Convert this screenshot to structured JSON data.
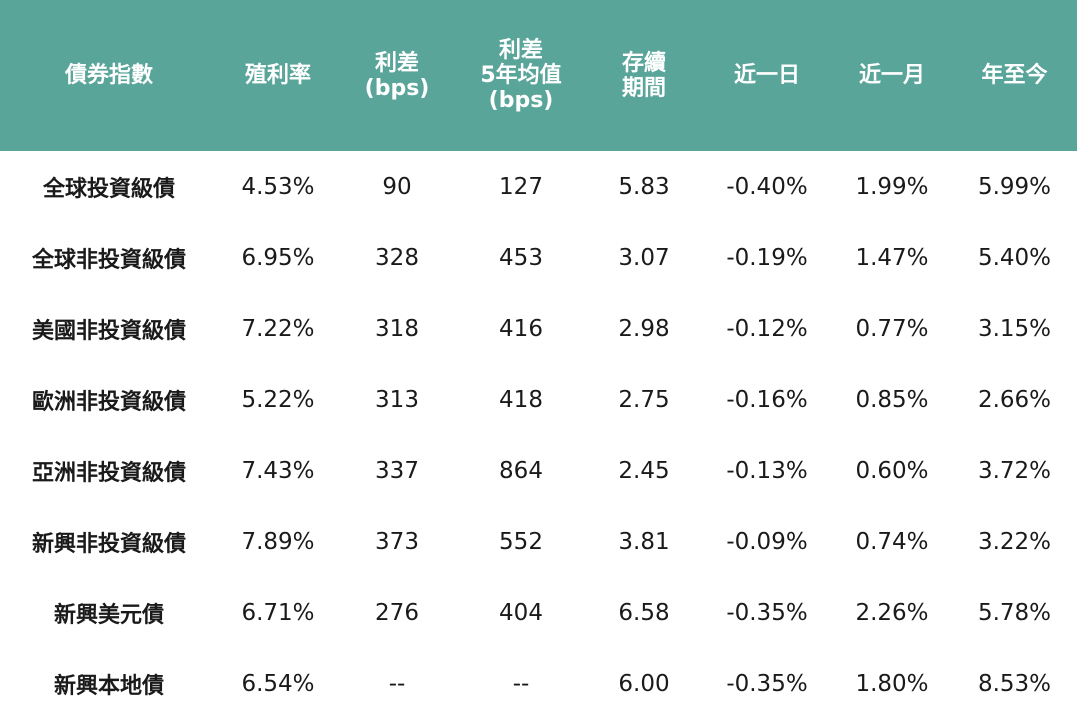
{
  "colors": {
    "header_bg": "#5aa59a",
    "header_text": "#ffffff",
    "negative": "#4a7a6e",
    "positive": "#b01c28"
  },
  "headers": [
    [
      "債券指數"
    ],
    [
      "殖利率"
    ],
    [
      "利差",
      "(bps)"
    ],
    [
      "利差",
      "5年均值",
      "(bps)"
    ],
    [
      "存續",
      "期間"
    ],
    [
      "近一日"
    ],
    [
      "近一月"
    ],
    [
      "年至今"
    ]
  ],
  "rows": [
    [
      "全球投資級債",
      "4.53%",
      "90",
      "127",
      "5.83",
      "-0.40%",
      "1.99%",
      "5.99%"
    ],
    [
      "全球非投資級債",
      "6.95%",
      "328",
      "453",
      "3.07",
      "-0.19%",
      "1.47%",
      "5.40%"
    ],
    [
      "美國非投資級債",
      "7.22%",
      "318",
      "416",
      "2.98",
      "-0.12%",
      "0.77%",
      "3.15%"
    ],
    [
      "歐洲非投資級債",
      "5.22%",
      "313",
      "418",
      "2.75",
      "-0.16%",
      "0.85%",
      "2.66%"
    ],
    [
      "亞洲非投資級債",
      "7.43%",
      "337",
      "864",
      "2.45",
      "-0.13%",
      "0.60%",
      "3.72%"
    ],
    [
      "新興非投資級債",
      "7.89%",
      "373",
      "552",
      "3.81",
      "-0.09%",
      "0.74%",
      "3.22%"
    ],
    [
      "新興美元債",
      "6.71%",
      "276",
      "404",
      "6.58",
      "-0.35%",
      "2.26%",
      "5.78%"
    ],
    [
      "新興本地債",
      "6.54%",
      "--",
      "--",
      "6.00",
      "-0.35%",
      "1.80%",
      "8.53%"
    ]
  ]
}
